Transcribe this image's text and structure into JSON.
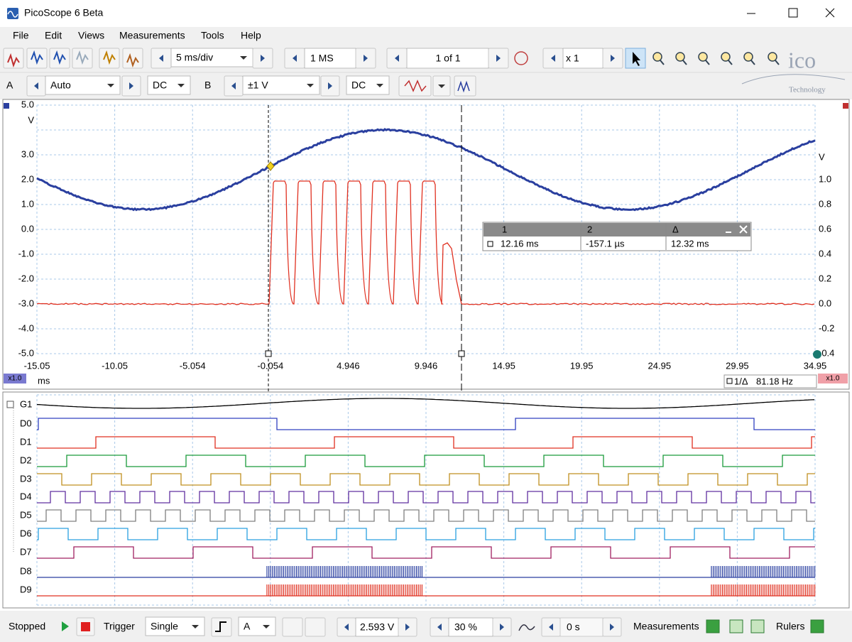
{
  "window": {
    "title": "PicoScope 6 Beta"
  },
  "menu": [
    "File",
    "Edit",
    "Views",
    "Measurements",
    "Tools",
    "Help"
  ],
  "toolbar": {
    "timebase": "5 ms/div",
    "samples": "1 MS",
    "buffer": "1 of 1",
    "zoom": "x 1"
  },
  "channels": {
    "a": {
      "label": "A",
      "range": "Auto",
      "coupling": "DC"
    },
    "b": {
      "label": "B",
      "range": "±1 V",
      "coupling": "DC"
    }
  },
  "logo": {
    "brand": "ico",
    "tagline": "Technology"
  },
  "scope": {
    "left_axis": [
      "5.0",
      "V",
      "3.0",
      "2.0",
      "1.0",
      "0.0",
      "-1.0",
      "-2.0",
      "-3.0",
      "-4.0",
      "-5.0"
    ],
    "right_axis": [
      "V",
      "1.0",
      "0.8",
      "0.6",
      "0.4",
      "0.2",
      "0.0",
      "-0.2",
      "-0.4"
    ],
    "x_axis": [
      "-15.05",
      "-10.05",
      "-5.054",
      "-0.054",
      "4.946",
      "9.946",
      "14.95",
      "19.95",
      "24.95",
      "29.95",
      "34.95"
    ],
    "x_unit": "ms",
    "left_zoom": "x1.0",
    "right_zoom": "x1.0"
  },
  "rulers": {
    "headers": [
      "1",
      "2",
      "Δ"
    ],
    "values": [
      "12.16 ms",
      "-157.1 µs",
      "12.32 ms"
    ]
  },
  "frequency": {
    "label": "1/Δ",
    "value": "81.18 Hz"
  },
  "digital": [
    "G1",
    "D0",
    "D1",
    "D2",
    "D3",
    "D4",
    "D5",
    "D6",
    "D7",
    "D8",
    "D9"
  ],
  "status": {
    "state": "Stopped",
    "trigger_label": "Trigger",
    "trigger_mode": "Single",
    "trigger_source": "A",
    "threshold": "2.593 V",
    "pre_trigger": "30 %",
    "delay": "0 s",
    "measurements": "Measurements",
    "rulers": "Rulers"
  }
}
